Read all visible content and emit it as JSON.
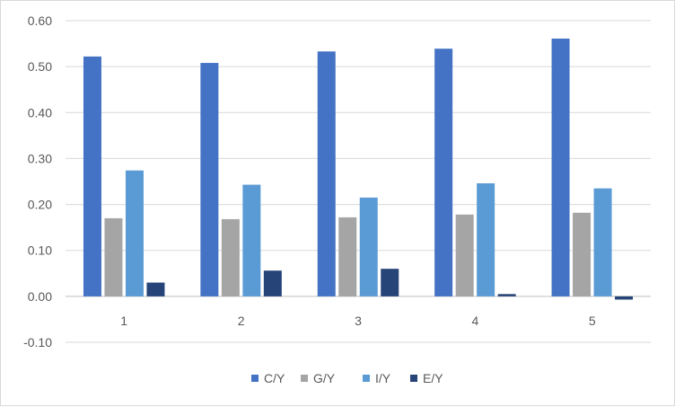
{
  "chart_data": {
    "type": "bar",
    "categories": [
      "1",
      "2",
      "3",
      "4",
      "5"
    ],
    "series": [
      {
        "name": "C/Y",
        "color": "#4472C4",
        "values": [
          0.522,
          0.508,
          0.533,
          0.539,
          0.561
        ]
      },
      {
        "name": "G/Y",
        "color": "#A5A5A5",
        "values": [
          0.17,
          0.168,
          0.172,
          0.178,
          0.182
        ]
      },
      {
        "name": "I/Y",
        "color": "#5B9BD5",
        "values": [
          0.274,
          0.243,
          0.215,
          0.246,
          0.235
        ]
      },
      {
        "name": "E/Y",
        "color": "#264478",
        "values": [
          0.03,
          0.056,
          0.06,
          0.005,
          -0.007
        ]
      }
    ],
    "ylim": [
      -0.1,
      0.6
    ],
    "yticks": [
      "-0.10",
      "0.00",
      "0.10",
      "0.20",
      "0.30",
      "0.40",
      "0.50",
      "0.60"
    ],
    "ytick_values": [
      -0.1,
      0.0,
      0.1,
      0.2,
      0.3,
      0.4,
      0.5,
      0.6
    ],
    "grid": true,
    "legend": "bottom"
  }
}
